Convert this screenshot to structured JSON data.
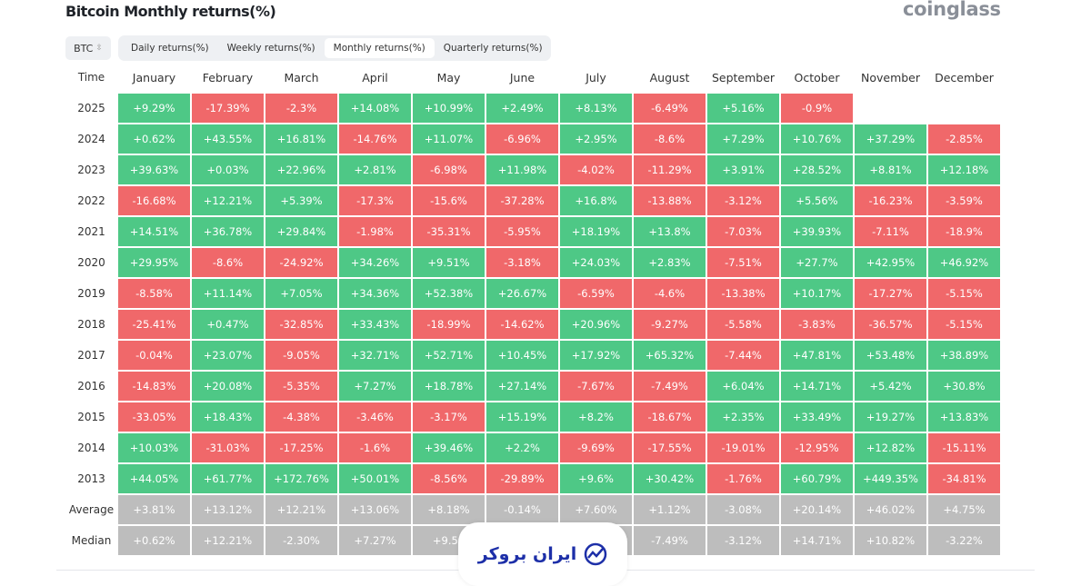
{
  "header": {
    "title": "Bitcoin Monthly returns(%)",
    "brand": "coinglass"
  },
  "controls": {
    "coin": "BTC",
    "tabs": [
      {
        "label": "Daily returns(%)",
        "active": false
      },
      {
        "label": "Weekly returns(%)",
        "active": false
      },
      {
        "label": "Monthly returns(%)",
        "active": true
      },
      {
        "label": "Quarterly returns(%)",
        "active": false
      }
    ]
  },
  "colors": {
    "positive": "#4ec886",
    "negative": "#f0686a",
    "summary": "#bdbdbd"
  },
  "table": {
    "time_header": "Time",
    "months": [
      "January",
      "February",
      "March",
      "April",
      "May",
      "June",
      "July",
      "August",
      "September",
      "October",
      "November",
      "December"
    ],
    "rows": [
      {
        "year": "2025",
        "values": [
          "+9.29%",
          "-17.39%",
          "-2.3%",
          "+14.08%",
          "+10.99%",
          "+2.49%",
          "+8.13%",
          "-6.49%",
          "+5.16%",
          "-0.9%",
          "",
          ""
        ]
      },
      {
        "year": "2024",
        "values": [
          "+0.62%",
          "+43.55%",
          "+16.81%",
          "-14.76%",
          "+11.07%",
          "-6.96%",
          "+2.95%",
          "-8.6%",
          "+7.29%",
          "+10.76%",
          "+37.29%",
          "-2.85%"
        ]
      },
      {
        "year": "2023",
        "values": [
          "+39.63%",
          "+0.03%",
          "+22.96%",
          "+2.81%",
          "-6.98%",
          "+11.98%",
          "-4.02%",
          "-11.29%",
          "+3.91%",
          "+28.52%",
          "+8.81%",
          "+12.18%"
        ]
      },
      {
        "year": "2022",
        "values": [
          "-16.68%",
          "+12.21%",
          "+5.39%",
          "-17.3%",
          "-15.6%",
          "-37.28%",
          "+16.8%",
          "-13.88%",
          "-3.12%",
          "+5.56%",
          "-16.23%",
          "-3.59%"
        ]
      },
      {
        "year": "2021",
        "values": [
          "+14.51%",
          "+36.78%",
          "+29.84%",
          "-1.98%",
          "-35.31%",
          "-5.95%",
          "+18.19%",
          "+13.8%",
          "-7.03%",
          "+39.93%",
          "-7.11%",
          "-18.9%"
        ]
      },
      {
        "year": "2020",
        "values": [
          "+29.95%",
          "-8.6%",
          "-24.92%",
          "+34.26%",
          "+9.51%",
          "-3.18%",
          "+24.03%",
          "+2.83%",
          "-7.51%",
          "+27.7%",
          "+42.95%",
          "+46.92%"
        ]
      },
      {
        "year": "2019",
        "values": [
          "-8.58%",
          "+11.14%",
          "+7.05%",
          "+34.36%",
          "+52.38%",
          "+26.67%",
          "-6.59%",
          "-4.6%",
          "-13.38%",
          "+10.17%",
          "-17.27%",
          "-5.15%"
        ]
      },
      {
        "year": "2018",
        "values": [
          "-25.41%",
          "+0.47%",
          "-32.85%",
          "+33.43%",
          "-18.99%",
          "-14.62%",
          "+20.96%",
          "-9.27%",
          "-5.58%",
          "-3.83%",
          "-36.57%",
          "-5.15%"
        ]
      },
      {
        "year": "2017",
        "values": [
          "-0.04%",
          "+23.07%",
          "-9.05%",
          "+32.71%",
          "+52.71%",
          "+10.45%",
          "+17.92%",
          "+65.32%",
          "-7.44%",
          "+47.81%",
          "+53.48%",
          "+38.89%"
        ]
      },
      {
        "year": "2016",
        "values": [
          "-14.83%",
          "+20.08%",
          "-5.35%",
          "+7.27%",
          "+18.78%",
          "+27.14%",
          "-7.67%",
          "-7.49%",
          "+6.04%",
          "+14.71%",
          "+5.42%",
          "+30.8%"
        ]
      },
      {
        "year": "2015",
        "values": [
          "-33.05%",
          "+18.43%",
          "-4.38%",
          "-3.46%",
          "-3.17%",
          "+15.19%",
          "+8.2%",
          "-18.67%",
          "+2.35%",
          "+33.49%",
          "+19.27%",
          "+13.83%"
        ]
      },
      {
        "year": "2014",
        "values": [
          "+10.03%",
          "-31.03%",
          "-17.25%",
          "-1.6%",
          "+39.46%",
          "+2.2%",
          "-9.69%",
          "-17.55%",
          "-19.01%",
          "-12.95%",
          "+12.82%",
          "-15.11%"
        ]
      },
      {
        "year": "2013",
        "values": [
          "+44.05%",
          "+61.77%",
          "+172.76%",
          "+50.01%",
          "-8.56%",
          "-29.89%",
          "+9.6%",
          "+30.42%",
          "-1.76%",
          "+60.79%",
          "+449.35%",
          "-34.81%"
        ]
      }
    ],
    "summary": [
      {
        "label": "Average",
        "values": [
          "+3.81%",
          "+13.12%",
          "+12.21%",
          "+13.06%",
          "+8.18%",
          "-0.14%",
          "+7.60%",
          "+1.12%",
          "-3.08%",
          "+20.14%",
          "+46.02%",
          "+4.75%"
        ]
      },
      {
        "label": "Median",
        "values": [
          "+0.62%",
          "+12.21%",
          "-2.30%",
          "+7.27%",
          "+9.51",
          "",
          "",
          "-7.49%",
          "-3.12%",
          "+14.71%",
          "+10.82%",
          "-3.22%"
        ]
      }
    ]
  },
  "watermark": {
    "text": "ایران بروکر"
  }
}
